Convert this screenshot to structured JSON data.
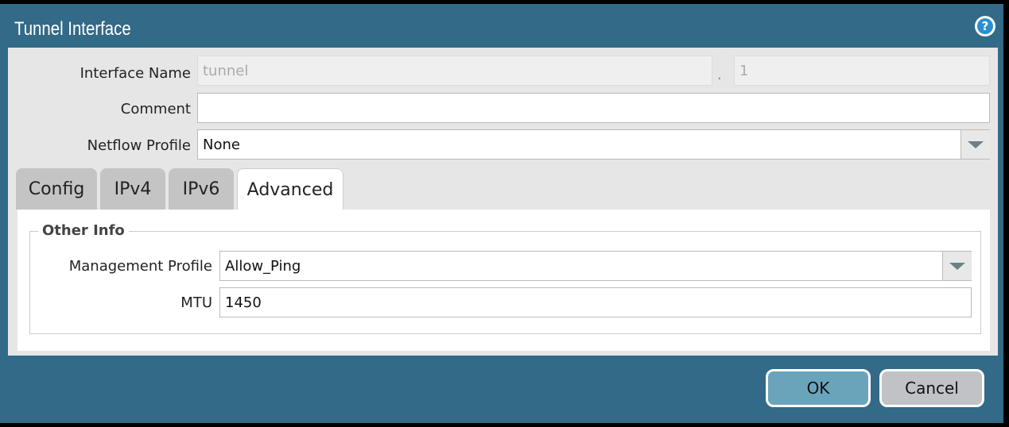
{
  "dialog": {
    "title": "Tunnel Interface",
    "help_icon": "help-icon"
  },
  "form": {
    "interface_name_label": "Interface Name",
    "interface_name_value": "tunnel",
    "separator": ".",
    "interface_unit_value": "1",
    "comment_label": "Comment",
    "comment_value": "",
    "netflow_label": "Netflow Profile",
    "netflow_value": "None"
  },
  "tabs": [
    {
      "label": "Config"
    },
    {
      "label": "IPv4"
    },
    {
      "label": "IPv6"
    },
    {
      "label": "Advanced",
      "active": true
    }
  ],
  "advanced": {
    "legend": "Other Info",
    "mgmt_label": "Management Profile",
    "mgmt_value": "Allow_Ping",
    "mtu_label": "MTU",
    "mtu_value": "1450"
  },
  "buttons": {
    "ok": "OK",
    "cancel": "Cancel"
  },
  "colors": {
    "frame": "#336a87",
    "ok": "#6aa4bb",
    "cancel": "#c0c2c6"
  }
}
